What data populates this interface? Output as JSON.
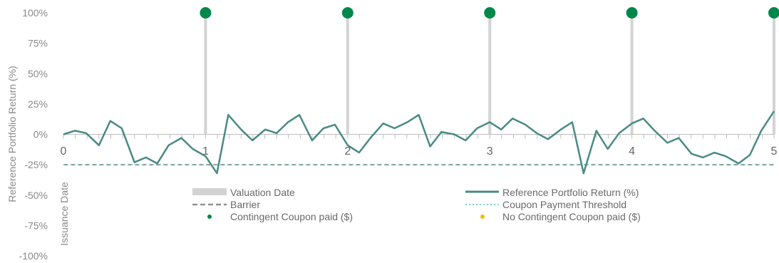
{
  "chart_data": {
    "type": "line",
    "ylabel": "Reference Portfolio Return (%)",
    "y_ticks": [
      "100%",
      "75%",
      "50%",
      "25%",
      "0%",
      "-25%",
      "-50%",
      "-75%",
      "-100%"
    ],
    "ylim": [
      -100,
      100
    ],
    "xlim": [
      0,
      5
    ],
    "x_ticks": [
      "0",
      "1",
      "2",
      "3",
      "4",
      "5"
    ],
    "issuance_label": "Issuance Date",
    "barrier": -25,
    "coupon_threshold": -25,
    "series": [
      {
        "name": "Reference Portfolio Return (%)",
        "x": [
          0,
          0.08,
          0.16,
          0.25,
          0.33,
          0.41,
          0.5,
          0.58,
          0.66,
          0.74,
          0.83,
          0.91,
          1.0,
          1.08,
          1.16,
          1.25,
          1.33,
          1.42,
          1.5,
          1.58,
          1.66,
          1.75,
          1.83,
          1.91,
          2.0,
          2.08,
          2.16,
          2.25,
          2.33,
          2.42,
          2.5,
          2.58,
          2.66,
          2.75,
          2.83,
          2.91,
          3.0,
          3.08,
          3.16,
          3.25,
          3.33,
          3.41,
          3.5,
          3.58,
          3.66,
          3.75,
          3.83,
          3.91,
          4.0,
          4.08,
          4.16,
          4.25,
          4.33,
          4.42,
          4.5,
          4.58,
          4.66,
          4.75,
          4.83,
          4.91,
          5.0
        ],
        "values": [
          0,
          3,
          1,
          -9,
          11,
          5,
          -23,
          -19,
          -24,
          -9,
          -3,
          -12,
          -18,
          -32,
          16,
          4,
          -5,
          4,
          1,
          10,
          16,
          -5,
          5,
          8,
          -9,
          -15,
          -3,
          9,
          5,
          10,
          16,
          -10,
          2,
          0,
          -5,
          5,
          10,
          4,
          13,
          8,
          1,
          -4,
          4,
          10,
          -32,
          3,
          -12,
          1,
          9,
          13,
          3,
          -7,
          -3,
          -16,
          -19,
          -15,
          -18,
          -24,
          -17,
          3,
          19
        ]
      }
    ],
    "valuation_dates": [
      1,
      2,
      3,
      4,
      5
    ],
    "coupon_points": [
      {
        "x": 1,
        "y": 100,
        "paid": true
      },
      {
        "x": 2,
        "y": 100,
        "paid": true
      },
      {
        "x": 3,
        "y": 100,
        "paid": true
      },
      {
        "x": 4,
        "y": 100,
        "paid": true
      },
      {
        "x": 5,
        "y": 100,
        "paid": true
      }
    ],
    "legend": {
      "valuation": "Valuation Date",
      "portfolio": "Reference Portfolio Return (%)",
      "barrier": "Barrier",
      "threshold": "Coupon Payment Threshold",
      "coupon_paid": "Contingent Coupon paid ($)",
      "coupon_not_paid": "No Contingent Coupon paid  ($)"
    },
    "colors": {
      "line": "#4a8a85",
      "barrier": "#909090",
      "threshold": "#7ecfc8",
      "coupon_paid": "#00874a",
      "coupon_not_paid": "#f5b800",
      "valuation": "#d3d3d3",
      "axis": "#bdbdbd"
    }
  }
}
